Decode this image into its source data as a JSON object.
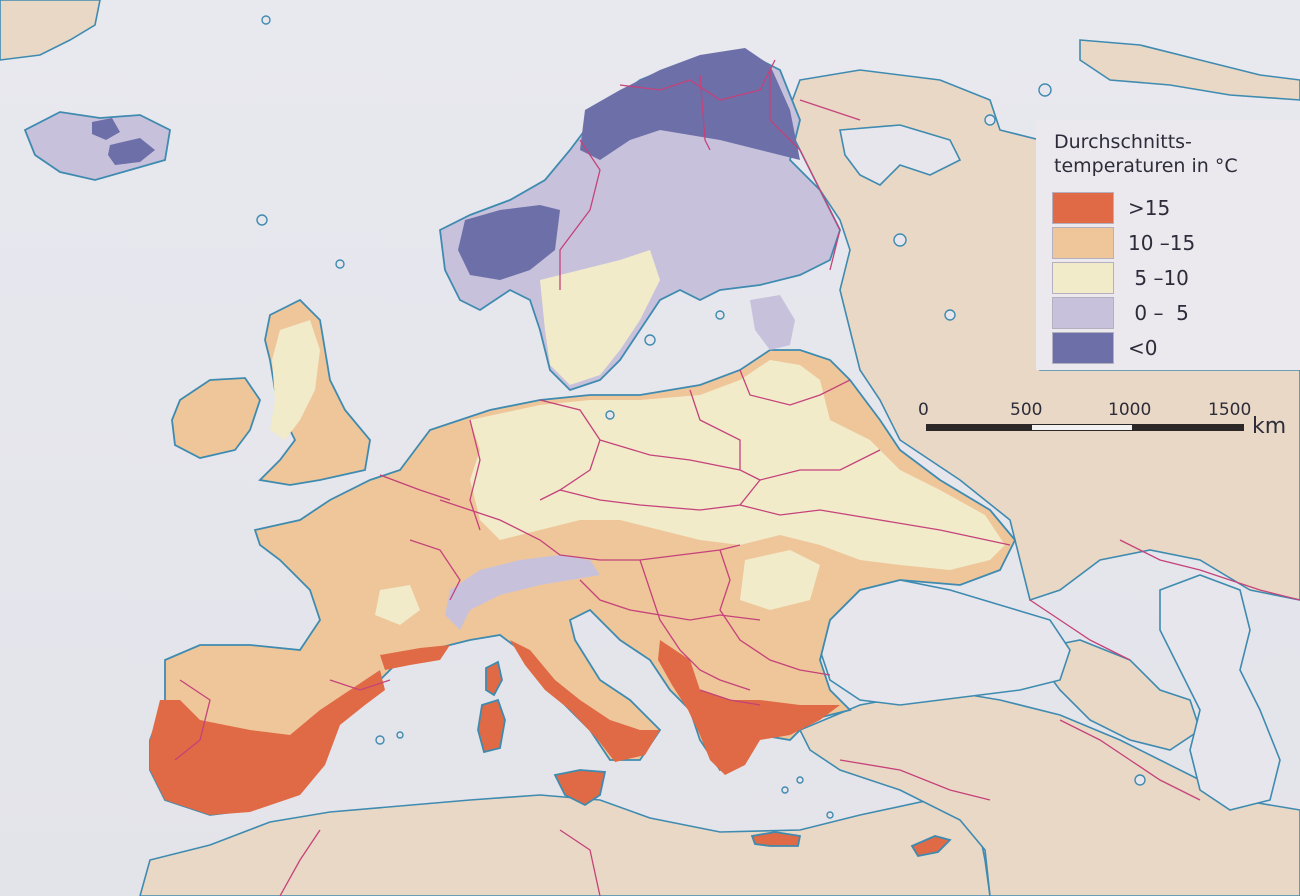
{
  "legend": {
    "title_line1": "Durchschnitts-",
    "title_line2": "temperaturen in °C",
    "entries": [
      {
        "label": ">15",
        "color": "#df6a45"
      },
      {
        "label": "10 –15",
        "color": "#eec69a"
      },
      {
        "label": " 5 –10",
        "color": "#f1ebca"
      },
      {
        "label": " 0 –  5",
        "color": "#c8c1dc"
      },
      {
        "label": "<0",
        "color": "#6c6fa8"
      }
    ]
  },
  "scale": {
    "ticks": [
      "0",
      "500",
      "1000",
      "1500"
    ],
    "unit": "km"
  },
  "colors": {
    "sea": "#e6e6ec",
    "coast": "#3f8bb0",
    "border": "#c5427a",
    "neighbor_land": "#ead8c6"
  }
}
